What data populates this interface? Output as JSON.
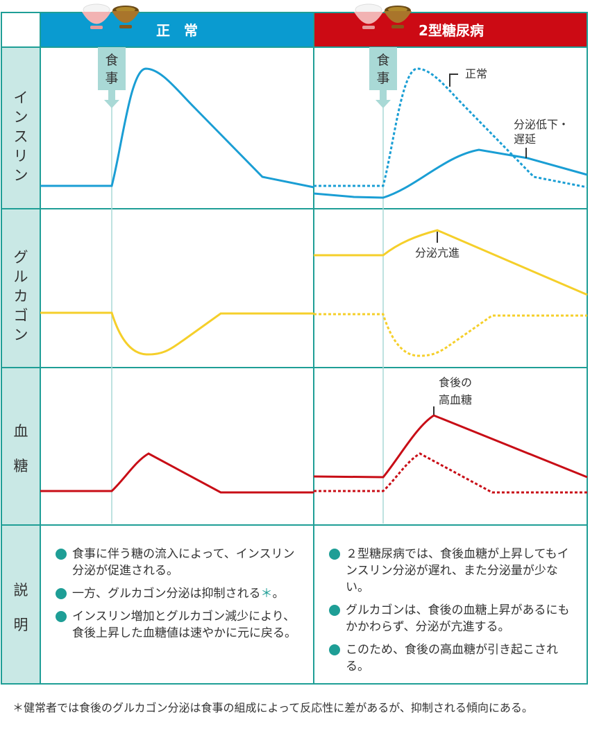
{
  "headers": {
    "normal": "正　常",
    "diabetes": "2型糖尿病"
  },
  "row_labels": {
    "insulin": [
      "イ",
      "ン",
      "ス",
      "リ",
      "ン"
    ],
    "glucagon": [
      "グ",
      "ル",
      "カ",
      "ゴ",
      "ン"
    ],
    "blood_sugar": [
      "血",
      "糖"
    ],
    "description": [
      "説",
      "明"
    ]
  },
  "meal_label": [
    "食",
    "事"
  ],
  "annotations": {
    "normal": "正常",
    "insulin_reduced": [
      "分泌低下・",
      "遅延"
    ],
    "glucagon_increased": "分泌亢進",
    "postprandial_hyperglycemia": [
      "食後の",
      "高血糖"
    ]
  },
  "descriptions": {
    "normal": [
      "食事に伴う糖の流入によって、インスリン分泌が促進される。",
      "一方、グルカゴン分泌は抑制される",
      "インスリン増加とグルカゴン減少により、食後上昇した血糖値は速やかに元に戻る。"
    ],
    "normal_marker": "＊",
    "normal_period": "。",
    "diabetes": [
      "２型糖尿病では、食後血糖が上昇してもインスリン分泌が遅れ、また分泌量が少ない。",
      "グルカゴンは、食後の血糖上昇があるにもかかわらず、分泌が亢進する。",
      "このため、食後の高血糖が引き起こされる。"
    ]
  },
  "footnote": "＊健常者では食後のグルカゴン分泌は食事の組成によって反応性に差があるが、抑制される傾向にある。",
  "colors": {
    "teal_frame": "#1e9e96",
    "label_bg": "#c9e8e5",
    "normal_header": "#0a9bd0",
    "diabetes_header": "#cc0a14",
    "insulin": "#1a9ed4",
    "glucagon": "#f5cf2a",
    "blood_sugar": "#c80d16",
    "meal_marker": "#a9d9d6"
  }
}
